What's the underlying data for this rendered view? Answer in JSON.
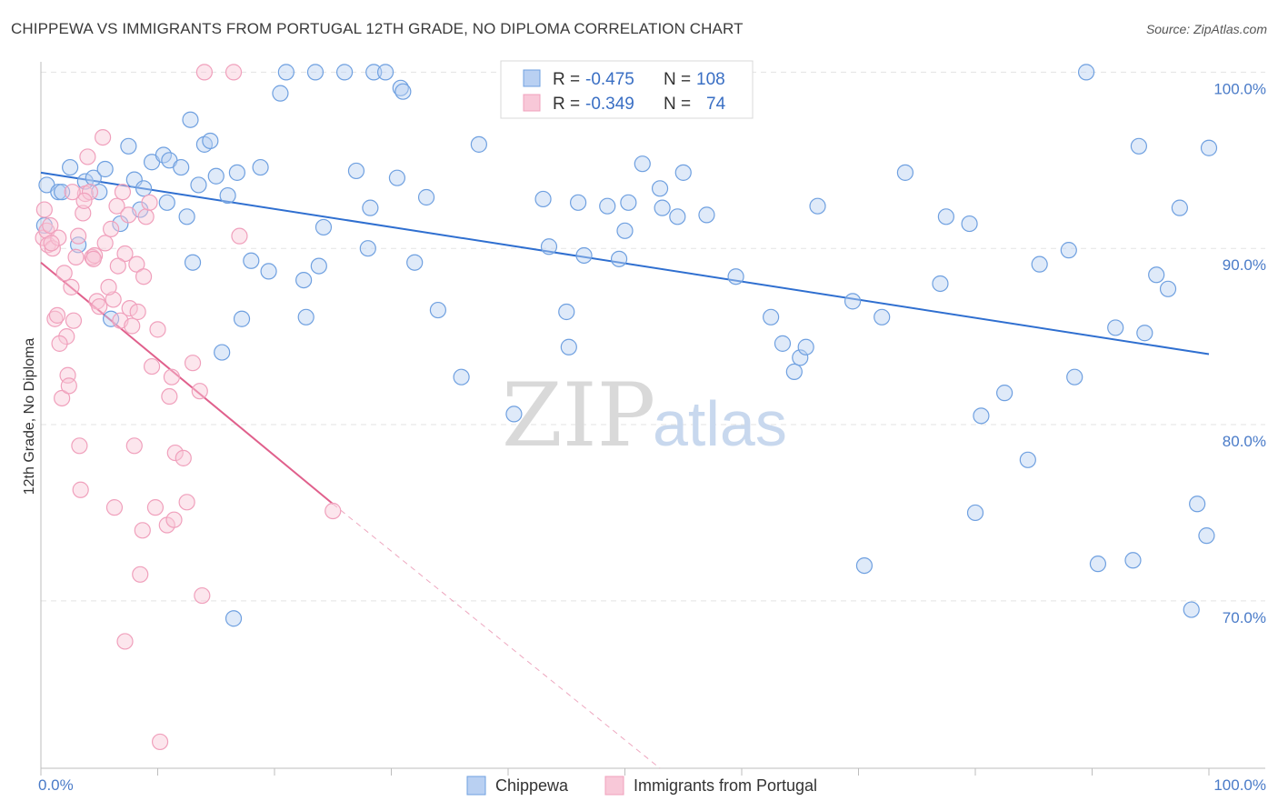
{
  "title": "CHIPPEWA VS IMMIGRANTS FROM PORTUGAL 12TH GRADE, NO DIPLOMA CORRELATION CHART",
  "source": "Source: ZipAtlas.com",
  "watermark": {
    "zip": "ZIP",
    "atlas": "atlas"
  },
  "chart_data": {
    "type": "scatter",
    "title": "CHIPPEWA VS IMMIGRANTS FROM PORTUGAL 12TH GRADE, NO DIPLOMA CORRELATION CHART",
    "ylabel": "12th Grade, No Diploma",
    "xlim": [
      0,
      100
    ],
    "ylim": [
      60.5,
      101
    ],
    "x_tick_labels": [
      "0.0%",
      "100.0%"
    ],
    "y_ticks": [
      70,
      80,
      90,
      100
    ],
    "y_tick_labels": [
      "70.0%",
      "80.0%",
      "90.0%",
      "100.0%"
    ],
    "legend_placement": "top-center",
    "legend": [
      {
        "r_label": "R =",
        "r_value": "-0.475",
        "n_label": "N =",
        "n_value": "108"
      },
      {
        "r_label": "R =",
        "r_value": "-0.349",
        "n_label": "N =",
        "n_value": "74"
      }
    ],
    "series": [
      {
        "name": "Chippewa",
        "color": "#6fa0e0",
        "fill": "#b9d0f2",
        "line_color": "#2f6fd0",
        "trend": {
          "x": [
            0,
            100
          ],
          "y": [
            94.3,
            84.0
          ]
        },
        "points": [
          [
            0.3,
            91.3
          ],
          [
            0.5,
            93.6
          ],
          [
            1.5,
            93.2
          ],
          [
            1.8,
            93.2
          ],
          [
            2.5,
            94.6
          ],
          [
            3.2,
            90.2
          ],
          [
            3.8,
            93.8
          ],
          [
            4.5,
            94.0
          ],
          [
            5.0,
            93.2
          ],
          [
            5.5,
            94.5
          ],
          [
            6.0,
            86.0
          ],
          [
            6.8,
            91.4
          ],
          [
            7.5,
            95.8
          ],
          [
            8.0,
            93.9
          ],
          [
            8.5,
            92.2
          ],
          [
            8.8,
            93.4
          ],
          [
            9.5,
            94.9
          ],
          [
            10.5,
            95.3
          ],
          [
            10.8,
            92.6
          ],
          [
            11.0,
            95.0
          ],
          [
            12.0,
            94.6
          ],
          [
            12.5,
            91.8
          ],
          [
            12.8,
            97.3
          ],
          [
            13.0,
            89.2
          ],
          [
            13.5,
            93.6
          ],
          [
            14.0,
            95.9
          ],
          [
            14.5,
            96.1
          ],
          [
            15.0,
            94.1
          ],
          [
            15.5,
            84.1
          ],
          [
            16.0,
            93.0
          ],
          [
            16.5,
            69.0
          ],
          [
            16.8,
            94.3
          ],
          [
            17.2,
            86.0
          ],
          [
            18.0,
            89.3
          ],
          [
            18.8,
            94.6
          ],
          [
            19.5,
            88.7
          ],
          [
            20.5,
            98.8
          ],
          [
            21.0,
            100.0
          ],
          [
            22.5,
            88.2
          ],
          [
            22.7,
            86.1
          ],
          [
            23.5,
            100.0
          ],
          [
            23.8,
            89.0
          ],
          [
            24.2,
            91.2
          ],
          [
            26.0,
            100.0
          ],
          [
            27.0,
            94.4
          ],
          [
            28.0,
            90.0
          ],
          [
            28.2,
            92.3
          ],
          [
            28.5,
            100.0
          ],
          [
            29.5,
            100.0
          ],
          [
            30.5,
            94.0
          ],
          [
            30.8,
            99.1
          ],
          [
            31.0,
            98.9
          ],
          [
            32.0,
            89.2
          ],
          [
            33.0,
            92.9
          ],
          [
            34.0,
            86.5
          ],
          [
            36.0,
            82.7
          ],
          [
            37.5,
            95.9
          ],
          [
            40.5,
            80.6
          ],
          [
            43.0,
            92.8
          ],
          [
            43.5,
            90.1
          ],
          [
            45.0,
            86.4
          ],
          [
            45.2,
            84.4
          ],
          [
            46.0,
            92.6
          ],
          [
            46.5,
            89.6
          ],
          [
            48.5,
            92.4
          ],
          [
            49.5,
            89.4
          ],
          [
            50.0,
            91.0
          ],
          [
            50.3,
            92.6
          ],
          [
            51.5,
            94.8
          ],
          [
            53.0,
            93.4
          ],
          [
            53.2,
            92.3
          ],
          [
            54.5,
            91.8
          ],
          [
            55.0,
            94.3
          ],
          [
            57.0,
            91.9
          ],
          [
            59.5,
            88.4
          ],
          [
            62.5,
            86.1
          ],
          [
            63.5,
            84.6
          ],
          [
            64.5,
            83.0
          ],
          [
            65.0,
            83.8
          ],
          [
            65.5,
            84.4
          ],
          [
            66.5,
            92.4
          ],
          [
            69.5,
            87.0
          ],
          [
            72.0,
            86.1
          ],
          [
            74.0,
            94.3
          ],
          [
            77.0,
            88.0
          ],
          [
            77.5,
            91.8
          ],
          [
            79.5,
            91.4
          ],
          [
            80.0,
            75.0
          ],
          [
            80.5,
            80.5
          ],
          [
            82.5,
            81.8
          ],
          [
            84.5,
            78.0
          ],
          [
            85.5,
            89.1
          ],
          [
            88.0,
            89.9
          ],
          [
            88.5,
            82.7
          ],
          [
            89.5,
            100.0
          ],
          [
            90.5,
            72.1
          ],
          [
            92.0,
            85.5
          ],
          [
            93.5,
            72.3
          ],
          [
            94.0,
            95.8
          ],
          [
            94.5,
            85.2
          ],
          [
            95.5,
            88.5
          ],
          [
            96.5,
            87.7
          ],
          [
            97.5,
            92.3
          ],
          [
            98.5,
            69.5
          ],
          [
            99.0,
            75.5
          ],
          [
            99.8,
            73.7
          ],
          [
            100.0,
            95.7
          ],
          [
            70.5,
            72.0
          ]
        ]
      },
      {
        "name": "Immigrants from Portugal",
        "color": "#f0a0bc",
        "fill": "#f8c8d8",
        "line_color": "#e0608c",
        "trend": {
          "x": [
            0,
            25,
            53
          ],
          "y": [
            89.2,
            75.5,
            60.5
          ],
          "solid_until": 25
        },
        "points": [
          [
            0.2,
            90.6
          ],
          [
            0.3,
            92.2
          ],
          [
            0.5,
            91.0
          ],
          [
            0.6,
            90.2
          ],
          [
            0.8,
            91.3
          ],
          [
            1.0,
            90.0
          ],
          [
            1.2,
            86.0
          ],
          [
            1.4,
            86.2
          ],
          [
            1.5,
            90.6
          ],
          [
            1.8,
            81.5
          ],
          [
            2.0,
            88.6
          ],
          [
            2.2,
            85.0
          ],
          [
            2.3,
            82.8
          ],
          [
            2.4,
            82.2
          ],
          [
            2.6,
            87.8
          ],
          [
            2.8,
            85.9
          ],
          [
            3.0,
            89.5
          ],
          [
            3.2,
            90.7
          ],
          [
            3.3,
            78.8
          ],
          [
            3.4,
            76.3
          ],
          [
            3.6,
            92.0
          ],
          [
            3.8,
            93.1
          ],
          [
            4.0,
            95.2
          ],
          [
            4.2,
            93.2
          ],
          [
            4.4,
            89.5
          ],
          [
            4.6,
            89.6
          ],
          [
            4.8,
            87.0
          ],
          [
            5.0,
            86.7
          ],
          [
            5.3,
            96.3
          ],
          [
            5.5,
            90.3
          ],
          [
            6.0,
            91.1
          ],
          [
            6.2,
            87.1
          ],
          [
            6.3,
            75.3
          ],
          [
            6.5,
            92.4
          ],
          [
            6.8,
            85.9
          ],
          [
            7.0,
            93.2
          ],
          [
            7.2,
            89.7
          ],
          [
            7.5,
            91.9
          ],
          [
            7.6,
            86.6
          ],
          [
            7.8,
            85.6
          ],
          [
            8.0,
            78.8
          ],
          [
            8.2,
            89.1
          ],
          [
            8.5,
            71.5
          ],
          [
            8.7,
            74.0
          ],
          [
            8.8,
            88.4
          ],
          [
            9.0,
            91.8
          ],
          [
            9.5,
            83.3
          ],
          [
            9.8,
            75.3
          ],
          [
            10.2,
            62.0
          ],
          [
            10.8,
            74.3
          ],
          [
            11.0,
            81.6
          ],
          [
            11.2,
            82.7
          ],
          [
            11.4,
            74.6
          ],
          [
            11.5,
            78.4
          ],
          [
            12.2,
            78.1
          ],
          [
            12.5,
            75.6
          ],
          [
            13.0,
            83.5
          ],
          [
            13.6,
            81.9
          ],
          [
            13.8,
            70.3
          ],
          [
            14.0,
            100.0
          ],
          [
            16.5,
            100.0
          ],
          [
            17.0,
            90.7
          ],
          [
            25.0,
            75.1
          ],
          [
            7.2,
            67.7
          ],
          [
            4.5,
            89.4
          ],
          [
            3.7,
            92.7
          ],
          [
            2.7,
            93.2
          ],
          [
            0.9,
            90.3
          ],
          [
            5.8,
            87.8
          ],
          [
            8.3,
            86.4
          ],
          [
            6.6,
            89.0
          ],
          [
            9.3,
            92.6
          ],
          [
            1.6,
            84.6
          ],
          [
            10.0,
            85.4
          ]
        ]
      }
    ]
  }
}
